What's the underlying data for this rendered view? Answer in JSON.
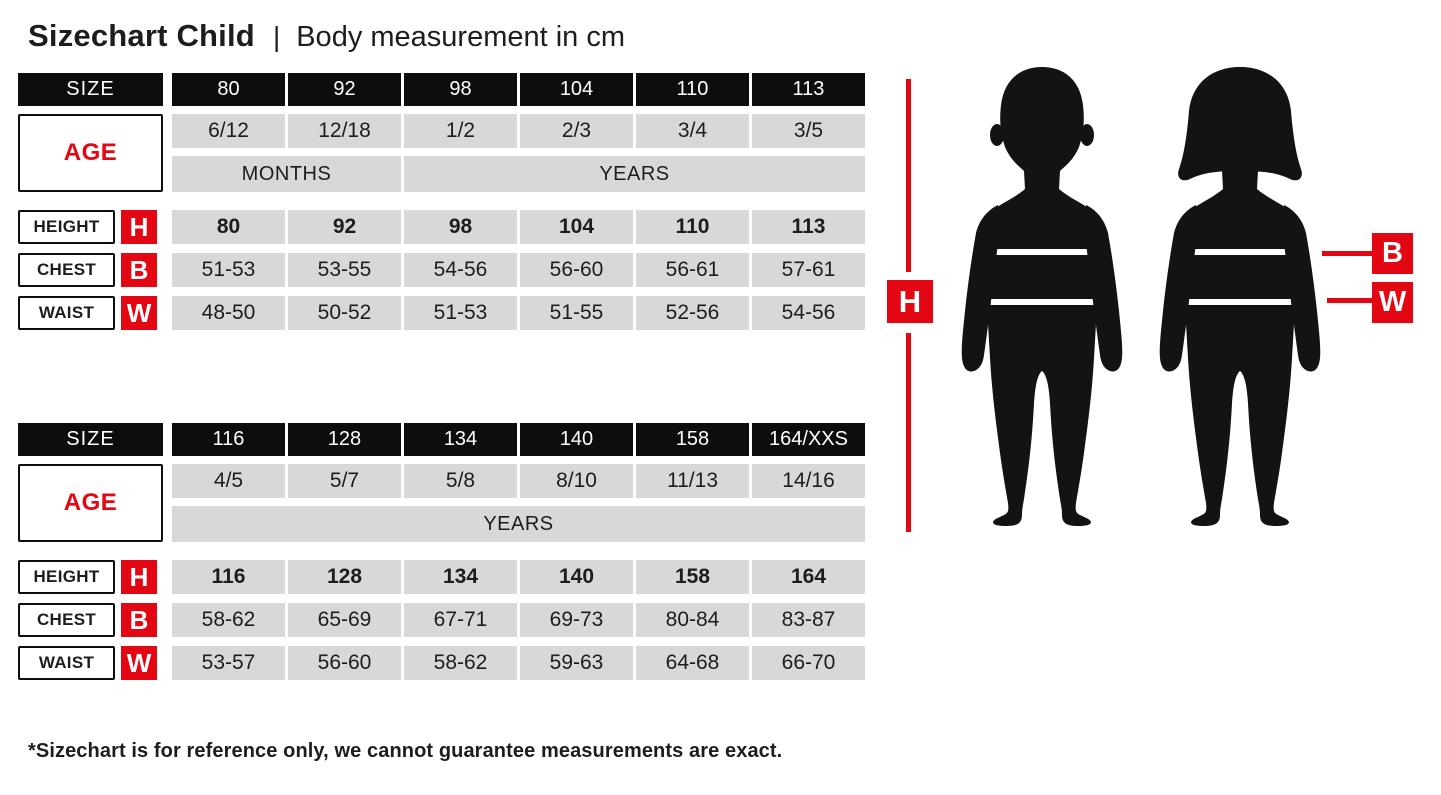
{
  "header": {
    "title": "Sizechart Child",
    "separator": "|",
    "subtitle": "Body measurement in cm"
  },
  "chart_data": [
    {
      "type": "table",
      "size_label": "SIZE",
      "age_label": "AGE",
      "sizes": [
        "80",
        "92",
        "98",
        "104",
        "110",
        "113"
      ],
      "ages": [
        "6/12",
        "12/18",
        "1/2",
        "2/3",
        "3/4",
        "3/5"
      ],
      "age_units": [
        {
          "label": "MONTHS",
          "cols": 2
        },
        {
          "label": "YEARS",
          "cols": 4
        }
      ],
      "measurements": [
        {
          "label": "HEIGHT",
          "key": "H",
          "bold": true,
          "values": [
            "80",
            "92",
            "98",
            "104",
            "110",
            "113"
          ]
        },
        {
          "label": "CHEST",
          "key": "B",
          "bold": false,
          "values": [
            "51-53",
            "53-55",
            "54-56",
            "56-60",
            "56-61",
            "57-61"
          ]
        },
        {
          "label": "WAIST",
          "key": "W",
          "bold": false,
          "values": [
            "48-50",
            "50-52",
            "51-53",
            "51-55",
            "52-56",
            "54-56"
          ]
        }
      ]
    },
    {
      "type": "table",
      "size_label": "SIZE",
      "age_label": "AGE",
      "sizes": [
        "116",
        "128",
        "134",
        "140",
        "158",
        "164/XXS"
      ],
      "ages": [
        "4/5",
        "5/7",
        "5/8",
        "8/10",
        "11/13",
        "14/16"
      ],
      "age_units": [
        {
          "label": "YEARS",
          "cols": 6
        }
      ],
      "measurements": [
        {
          "label": "HEIGHT",
          "key": "H",
          "bold": true,
          "values": [
            "116",
            "128",
            "134",
            "140",
            "158",
            "164"
          ]
        },
        {
          "label": "CHEST",
          "key": "B",
          "bold": false,
          "values": [
            "58-62",
            "65-69",
            "67-71",
            "69-73",
            "80-84",
            "83-87"
          ]
        },
        {
          "label": "WAIST",
          "key": "W",
          "bold": false,
          "values": [
            "53-57",
            "56-60",
            "58-62",
            "59-63",
            "64-68",
            "66-70"
          ]
        }
      ]
    }
  ],
  "figure": {
    "height_key": "H",
    "chest_key": "B",
    "waist_key": "W"
  },
  "footer": {
    "note": "*Sizechart is for reference only, we cannot guarantee measurements are exact."
  },
  "colors": {
    "accent_red": "#e30613",
    "header_black": "#0d0d0d",
    "cell_gray": "#d8d8d8",
    "silhouette": "#131313"
  }
}
